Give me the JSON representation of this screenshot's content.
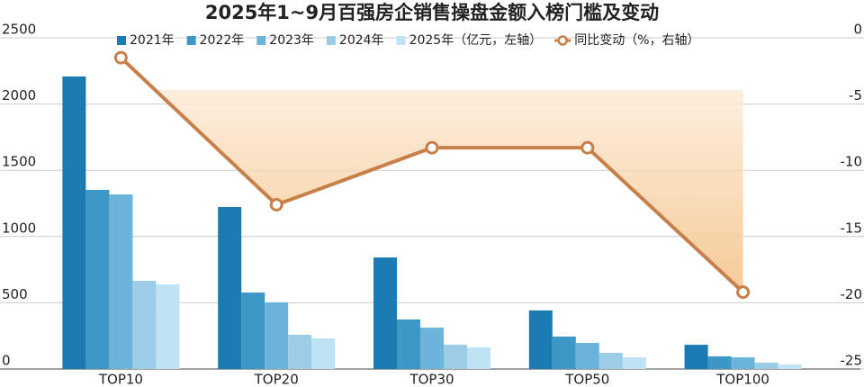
{
  "chart_data": {
    "type": "bar",
    "title": "2025年1~9月百强房企销售操盘金额入榜门槛及变动",
    "categories": [
      "TOP10",
      "TOP20",
      "TOP30",
      "TOP50",
      "TOP100"
    ],
    "series": [
      {
        "name": "2021年",
        "color": "#1b7bb1",
        "values": [
          2208,
          1223,
          842,
          442,
          183
        ]
      },
      {
        "name": "2022年",
        "color": "#3d98c8",
        "values": [
          1352,
          577,
          374,
          245,
          95
        ]
      },
      {
        "name": "2023年",
        "color": "#6cb4d9",
        "values": [
          1318,
          503,
          312,
          197,
          88
        ]
      },
      {
        "name": "2024年",
        "color": "#9ccce6",
        "values": [
          666,
          258,
          183,
          122,
          48
        ]
      },
      {
        "name": "2025年（亿元，左轴）",
        "color": "#bfe2f4",
        "values": [
          639,
          231,
          163,
          88,
          34
        ]
      },
      {
        "name": "同比变动（%，右轴）",
        "type": "line",
        "axis": "y2",
        "color": "#c8804a",
        "values": [
          -1.5,
          -12.6,
          -8.3,
          -8.3,
          -19.2
        ]
      }
    ],
    "ylim": [
      0,
      2500
    ],
    "yticks": [
      0,
      500,
      1000,
      1500,
      2000,
      2500
    ],
    "y2lim": [
      -25,
      0
    ],
    "y2ticks": [
      0,
      -5,
      -10,
      -15,
      -20,
      -25
    ],
    "grid": true
  }
}
